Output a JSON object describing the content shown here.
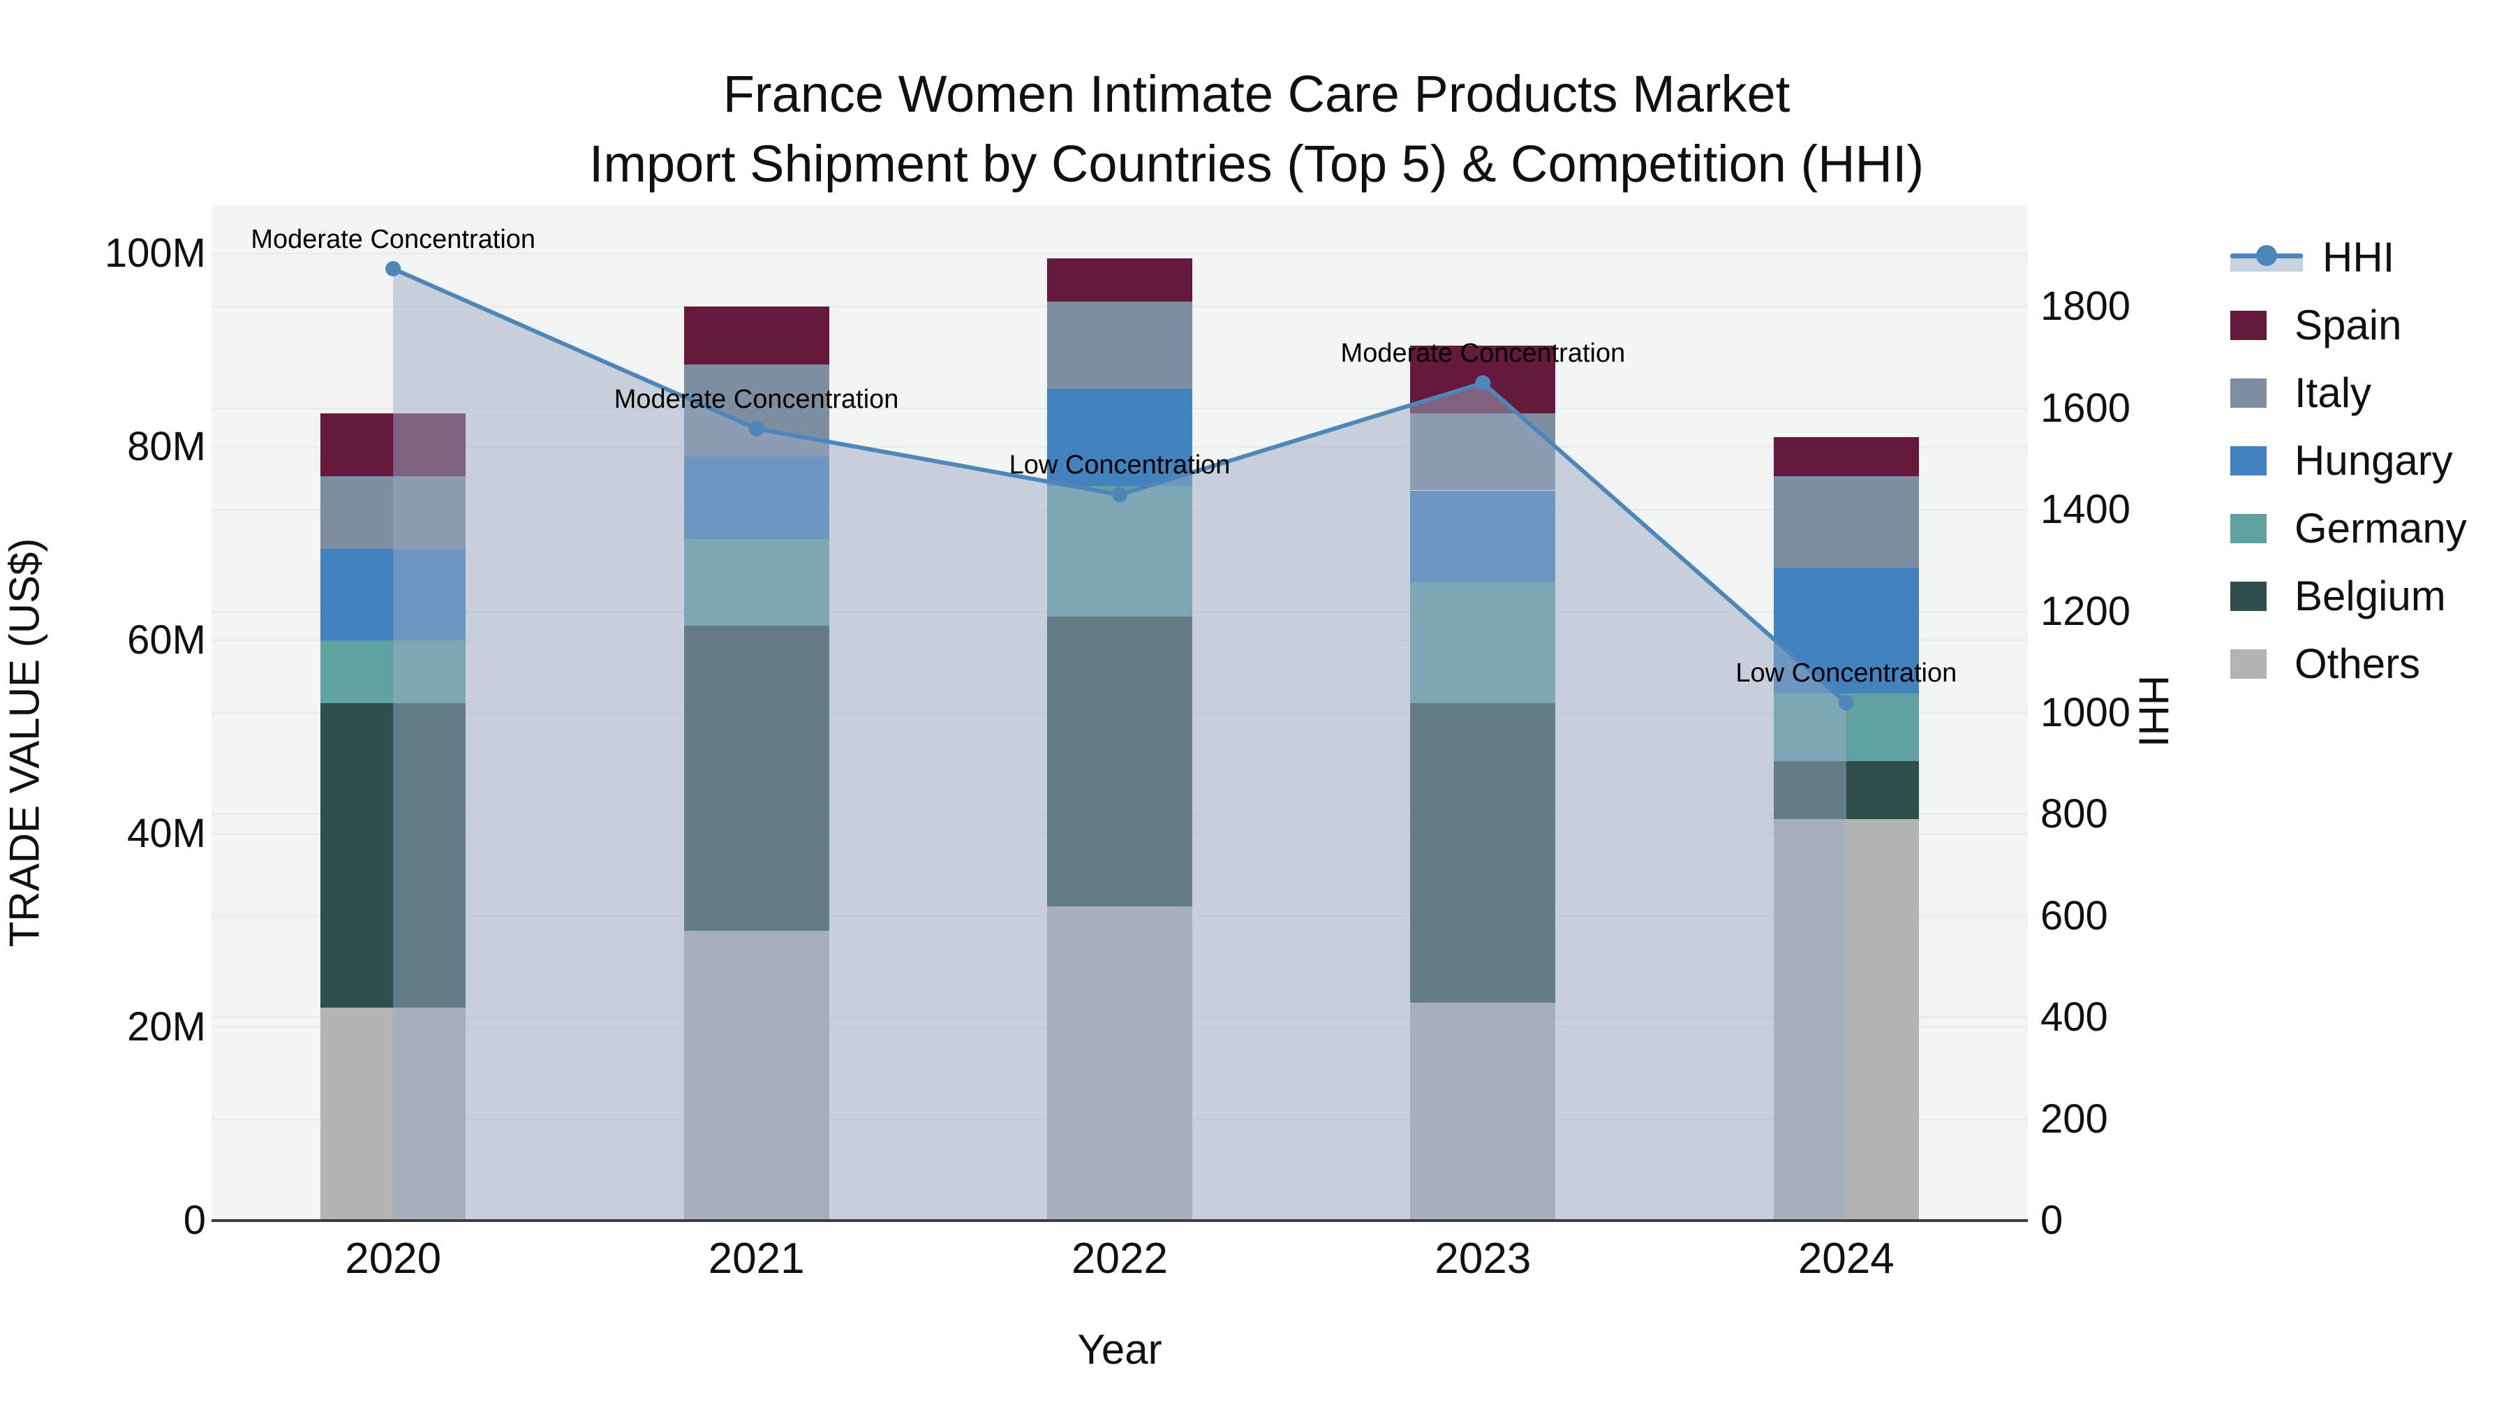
{
  "title": {
    "line1": "France Women Intimate Care Products Market",
    "line2": "Import Shipment by Countries (Top 5) & Competition (HHI)"
  },
  "axes": {
    "y_left": {
      "title": "TRADE VALUE (US$)",
      "tick_values": [
        0,
        20,
        40,
        60,
        80,
        100
      ],
      "tick_labels": [
        "0",
        "20M",
        "40M",
        "60M",
        "80M",
        "100M"
      ]
    },
    "y_right": {
      "title": "HHI",
      "tick_values": [
        0,
        200,
        400,
        600,
        800,
        1000,
        1200,
        1400,
        1600,
        1800
      ]
    },
    "x": {
      "title": "Year"
    }
  },
  "legend": {
    "items": [
      {
        "label": "HHI",
        "type": "line",
        "color": "#4d87ba",
        "fill": "#c9d3de"
      },
      {
        "label": "Spain",
        "type": "swatch",
        "color": "#65193b"
      },
      {
        "label": "Italy",
        "type": "swatch",
        "color": "#7e8ea1"
      },
      {
        "label": "Hungary",
        "type": "swatch",
        "color": "#4182bf"
      },
      {
        "label": "Germany",
        "type": "swatch",
        "color": "#60a2a2"
      },
      {
        "label": "Belgium",
        "type": "swatch",
        "color": "#2e4f4c"
      },
      {
        "label": "Others",
        "type": "swatch",
        "color": "#b2b4b3"
      }
    ]
  },
  "chart_data": {
    "type": "bar+line",
    "title": "France Women Intimate Care Products Market — Import Shipment by Countries (Top 5) & Competition (HHI)",
    "xlabel": "Year",
    "ylabel": "TRADE VALUE (US$)",
    "y2label": "HHI",
    "categories": [
      "2020",
      "2021",
      "2022",
      "2023",
      "2024"
    ],
    "value_unit": "millions USD",
    "ylim": [
      0,
      105
    ],
    "y2lim": [
      0,
      2000
    ],
    "grid_left_values": [
      20,
      40,
      60,
      80,
      100
    ],
    "grid_right_values": [
      200,
      400,
      600,
      800,
      1000,
      1200,
      1400,
      1600,
      1800
    ],
    "series": [
      {
        "name": "Others",
        "color": "#b2b4b3",
        "values": [
          22.0,
          30.0,
          32.5,
          22.5,
          41.5
        ]
      },
      {
        "name": "Belgium",
        "color": "#2e4f4c",
        "values": [
          31.5,
          31.5,
          30.0,
          31.0,
          6.0
        ]
      },
      {
        "name": "Germany",
        "color": "#60a2a2",
        "values": [
          6.5,
          9.0,
          13.5,
          12.5,
          7.0
        ]
      },
      {
        "name": "Hungary",
        "color": "#4182bf",
        "values": [
          9.5,
          8.5,
          10.0,
          9.5,
          13.0
        ]
      },
      {
        "name": "Italy",
        "color": "#7e8ea1",
        "values": [
          7.5,
          9.5,
          9.0,
          8.0,
          9.5
        ]
      },
      {
        "name": "Spain",
        "color": "#65193b",
        "values": [
          6.5,
          6.0,
          4.5,
          7.0,
          4.0
        ]
      }
    ],
    "line_series": {
      "name": "HHI",
      "color": "#4d87ba",
      "fill_color": "rgba(154,171,193,0.5)",
      "values": [
        1875,
        1560,
        1430,
        1650,
        1020
      ]
    },
    "annotations": [
      {
        "category_index": 0,
        "text": "Moderate Concentration"
      },
      {
        "category_index": 1,
        "text": "Moderate Concentration"
      },
      {
        "category_index": 2,
        "text": "Low Concentration"
      },
      {
        "category_index": 3,
        "text": "Moderate Concentration"
      },
      {
        "category_index": 4,
        "text": "Low Concentration"
      }
    ],
    "legend_position": "right",
    "grid": true
  }
}
